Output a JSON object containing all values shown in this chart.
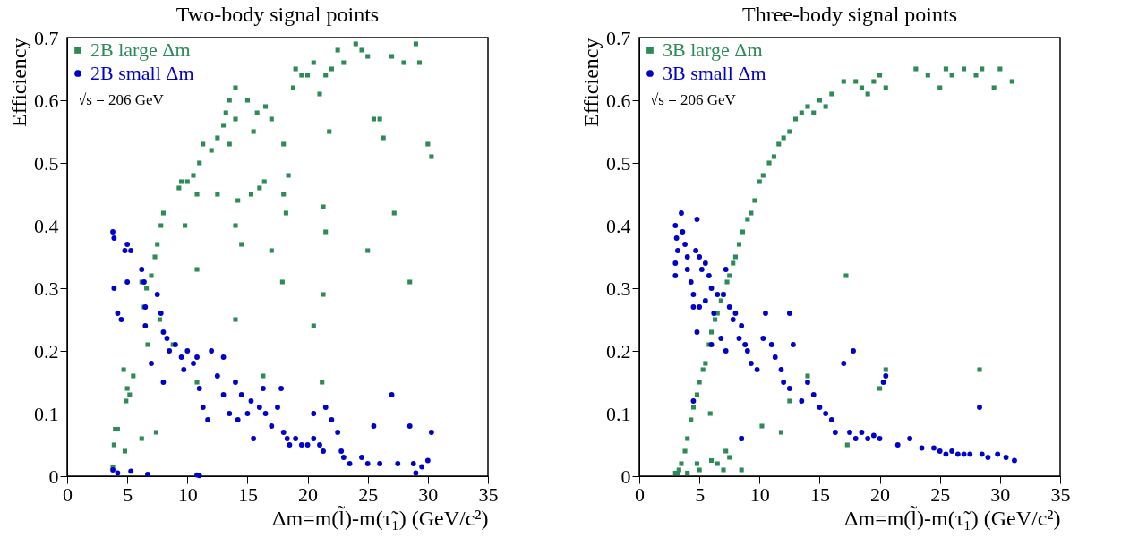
{
  "chart_data": [
    {
      "type": "scatter",
      "title": "Two-body signal points",
      "xlabel": "Δm=m(l̃)-m(τ̃₁) (GeV/c²)",
      "ylabel": "Efficiency",
      "xlim": [
        0,
        35
      ],
      "ylim": [
        0,
        0.7
      ],
      "xticks": [
        0,
        5,
        10,
        15,
        20,
        25,
        30,
        35
      ],
      "yticks": [
        0,
        0.1,
        0.2,
        0.3,
        0.4,
        0.5,
        0.6,
        0.7
      ],
      "grid": false,
      "legend": "top left",
      "annotations": [
        "√s = 206 GeV"
      ],
      "series": [
        {
          "name": "2B large Δm",
          "color": "#2e8b57",
          "marker": "square",
          "x": [
            3.8,
            3.9,
            4.0,
            4.2,
            4.7,
            5.0,
            4.9,
            5.2,
            5.5,
            4.8,
            6.2,
            6.2,
            6.4,
            6.6,
            6.7,
            7.0,
            7.3,
            7.5,
            7.8,
            8.0,
            7.7,
            7.4,
            8.8,
            9.3,
            9.5,
            10.0,
            9.8,
            10.5,
            10.8,
            11.0,
            11.3,
            10.8,
            10.8,
            12.0,
            12.5,
            13.0,
            13.2,
            13.5,
            14.0,
            14.0,
            13.5,
            14.2,
            14.0,
            14.0,
            15.0,
            15.5,
            15.8,
            16.0,
            16.5,
            17.0,
            17.0,
            18.0,
            18.0,
            18.2,
            17.9,
            18.4,
            18.8,
            19.0,
            19.5,
            20.0,
            20.5,
            21.0,
            21.5,
            21.8,
            21.5,
            21.3,
            21.2,
            21.3,
            20.5,
            22.0,
            22.5,
            23.0,
            24.0,
            24.5,
            25.0,
            25.0,
            25.5,
            26.0,
            26.3,
            27.0,
            27.2,
            28.0,
            28.5,
            29.0,
            29.3,
            30.0,
            30.3,
            16.3,
            16.4,
            12.5,
            14.5,
            15.3
          ],
          "values": [
            0.015,
            0.05,
            0.075,
            0.075,
            0.17,
            0.14,
            0.12,
            0.13,
            0.16,
            0.04,
            0.06,
            0.31,
            0.27,
            0.3,
            0.21,
            0.32,
            0.35,
            0.37,
            0.4,
            0.42,
            0.25,
            0.07,
            0.21,
            0.46,
            0.47,
            0.47,
            0.4,
            0.48,
            0.45,
            0.5,
            0.53,
            0.33,
            0.15,
            0.52,
            0.45,
            0.56,
            0.58,
            0.6,
            0.62,
            0.57,
            0.53,
            0.44,
            0.25,
            0.4,
            0.6,
            0.55,
            0.58,
            0.46,
            0.59,
            0.57,
            0.36,
            0.53,
            0.45,
            0.42,
            0.31,
            0.48,
            0.62,
            0.65,
            0.64,
            0.64,
            0.66,
            0.61,
            0.64,
            0.55,
            0.39,
            0.43,
            0.15,
            0.29,
            0.24,
            0.65,
            0.68,
            0.66,
            0.69,
            0.68,
            0.67,
            0.36,
            0.57,
            0.57,
            0.54,
            0.67,
            0.42,
            0.66,
            0.31,
            0.69,
            0.66,
            0.53,
            0.51,
            0.16,
            0.47,
            0.54,
            0.37,
            0.45
          ]
        },
        {
          "name": "2B small Δm",
          "color": "#0000cc",
          "marker": "circle",
          "x": [
            3.8,
            3.9,
            3.9,
            4.2,
            4.5,
            4.8,
            5.0,
            5.3,
            5.0,
            6.2,
            6.4,
            6.5,
            6.5,
            7.0,
            7.5,
            7.8,
            8.0,
            8.3,
            8.5,
            8.0,
            9.0,
            9.5,
            9.7,
            10.0,
            10.5,
            10.8,
            11.0,
            11.3,
            11.7,
            12.0,
            12.5,
            13.0,
            13.5,
            14.0,
            14.2,
            14.5,
            15.0,
            15.3,
            15.5,
            16.0,
            16.3,
            16.5,
            17.0,
            17.5,
            17.8,
            18.0,
            18.3,
            18.5,
            19.0,
            19.5,
            20.0,
            20.5,
            21.0,
            21.3,
            21.5,
            22.0,
            22.5,
            22.8,
            23.0,
            23.5,
            24.5,
            25.0,
            25.5,
            26.0,
            27.0,
            27.5,
            28.5,
            28.8,
            29.0,
            29.5,
            30.0,
            30.3,
            3.8,
            4.2,
            5.3,
            6.7,
            10.8,
            11.0,
            20.5,
            13.0
          ],
          "values": [
            0.39,
            0.38,
            0.3,
            0.26,
            0.25,
            0.36,
            0.37,
            0.36,
            0.31,
            0.33,
            0.31,
            0.27,
            0.24,
            0.18,
            0.29,
            0.26,
            0.23,
            0.22,
            0.2,
            0.15,
            0.21,
            0.19,
            0.17,
            0.2,
            0.18,
            0.19,
            0.14,
            0.11,
            0.09,
            0.2,
            0.16,
            0.13,
            0.1,
            0.15,
            0.09,
            0.13,
            0.1,
            0.12,
            0.06,
            0.11,
            0.14,
            0.1,
            0.08,
            0.11,
            0.14,
            0.07,
            0.06,
            0.05,
            0.06,
            0.05,
            0.05,
            0.06,
            0.05,
            0.04,
            0.11,
            0.09,
            0.07,
            0.04,
            0.03,
            0.02,
            0.03,
            0.02,
            0.08,
            0.02,
            0.13,
            0.02,
            0.08,
            0.02,
            0.005,
            0.015,
            0.025,
            0.07,
            0.01,
            0.005,
            0.008,
            0.003,
            0.002,
            0.001,
            0.1,
            0.19
          ]
        }
      ]
    },
    {
      "type": "scatter",
      "title": "Three-body signal points",
      "xlabel": "Δm=m(l̃)-m(τ̃₁) (GeV/c²)",
      "ylabel": "Efficiency",
      "xlim": [
        0,
        35
      ],
      "ylim": [
        0,
        0.7
      ],
      "xticks": [
        0,
        5,
        10,
        15,
        20,
        25,
        30,
        35
      ],
      "yticks": [
        0,
        0.1,
        0.2,
        0.3,
        0.4,
        0.5,
        0.6,
        0.7
      ],
      "grid": false,
      "legend": "top left",
      "annotations": [
        "√s = 206 GeV"
      ],
      "series": [
        {
          "name": "3B large Δm",
          "color": "#2e8b57",
          "marker": "square",
          "x": [
            3.0,
            3.3,
            3.5,
            3.8,
            4.0,
            4.3,
            4.5,
            4.8,
            5.0,
            5.3,
            5.5,
            5.8,
            6.0,
            6.3,
            6.5,
            6.8,
            7.0,
            7.3,
            7.5,
            7.8,
            8.0,
            8.3,
            8.6,
            9.0,
            9.3,
            9.6,
            10.0,
            10.3,
            10.8,
            11.2,
            11.6,
            12.0,
            12.5,
            13.0,
            13.5,
            14.0,
            14.5,
            15.0,
            15.5,
            16.0,
            17.0,
            18.0,
            18.5,
            19.0,
            19.5,
            20.0,
            20.5,
            23.0,
            24.0,
            25.0,
            25.5,
            26.0,
            27.0,
            28.0,
            28.5,
            29.5,
            30.0,
            31.0,
            4.0,
            4.8,
            5.0,
            6.0,
            6.5,
            7.0,
            7.2,
            7.5,
            8.5,
            8.5,
            10.2,
            11.8,
            12.5,
            14.0,
            17.2,
            17.3,
            20.0,
            20.5,
            28.3,
            5.9,
            3.2
          ],
          "values": [
            0.005,
            0.01,
            0.02,
            0.04,
            0.06,
            0.09,
            0.11,
            0.13,
            0.15,
            0.17,
            0.18,
            0.21,
            0.23,
            0.25,
            0.26,
            0.28,
            0.29,
            0.31,
            0.32,
            0.34,
            0.35,
            0.37,
            0.39,
            0.41,
            0.42,
            0.44,
            0.47,
            0.48,
            0.5,
            0.51,
            0.53,
            0.54,
            0.55,
            0.57,
            0.58,
            0.59,
            0.58,
            0.6,
            0.59,
            0.61,
            0.63,
            0.63,
            0.62,
            0.61,
            0.63,
            0.64,
            0.62,
            0.65,
            0.64,
            0.62,
            0.65,
            0.64,
            0.65,
            0.64,
            0.65,
            0.62,
            0.65,
            0.63,
            0.005,
            0.02,
            0.01,
            0.025,
            0.02,
            0.01,
            0.04,
            0.03,
            0.06,
            0.01,
            0.08,
            0.07,
            0.12,
            0.16,
            0.32,
            0.05,
            0.14,
            0.17,
            0.17,
            0.1,
            0.005
          ]
        },
        {
          "name": "3B small Δm",
          "color": "#0000cc",
          "marker": "circle",
          "x": [
            3.0,
            3.1,
            3.2,
            3.0,
            3.0,
            3.5,
            3.6,
            3.8,
            4.0,
            4.0,
            4.3,
            4.5,
            4.7,
            4.8,
            5.0,
            5.2,
            5.5,
            5.8,
            6.0,
            5.5,
            5.0,
            4.5,
            6.5,
            6.2,
            7.0,
            7.2,
            7.5,
            7.8,
            8.0,
            8.5,
            6.0,
            6.8,
            7.2,
            8.3,
            8.8,
            9.0,
            9.3,
            9.8,
            10.3,
            10.5,
            11.0,
            11.3,
            11.8,
            12.0,
            12.5,
            12.5,
            12.8,
            13.5,
            14.0,
            14.5,
            15.0,
            15.5,
            16.0,
            16.3,
            17.0,
            17.5,
            17.8,
            18.0,
            18.5,
            19.0,
            19.5,
            20.0,
            20.3,
            20.5,
            21.5,
            22.5,
            23.5,
            24.5,
            25.0,
            25.5,
            26.0,
            26.5,
            27.0,
            27.5,
            28.3,
            28.5,
            29.0,
            29.8,
            30.5,
            31.2,
            8.5,
            4.5,
            4.8
          ],
          "values": [
            0.4,
            0.38,
            0.36,
            0.34,
            0.32,
            0.42,
            0.39,
            0.37,
            0.35,
            0.33,
            0.31,
            0.29,
            0.36,
            0.41,
            0.35,
            0.33,
            0.34,
            0.32,
            0.3,
            0.28,
            0.27,
            0.27,
            0.29,
            0.26,
            0.29,
            0.33,
            0.27,
            0.25,
            0.26,
            0.24,
            0.21,
            0.22,
            0.2,
            0.22,
            0.21,
            0.2,
            0.18,
            0.17,
            0.22,
            0.26,
            0.21,
            0.19,
            0.17,
            0.15,
            0.26,
            0.14,
            0.21,
            0.12,
            0.15,
            0.13,
            0.11,
            0.1,
            0.09,
            0.07,
            0.18,
            0.07,
            0.2,
            0.06,
            0.07,
            0.06,
            0.065,
            0.06,
            0.15,
            0.16,
            0.05,
            0.06,
            0.045,
            0.045,
            0.04,
            0.035,
            0.04,
            0.035,
            0.035,
            0.035,
            0.11,
            0.035,
            0.03,
            0.035,
            0.03,
            0.025,
            0.06,
            0.12,
            0.23
          ]
        }
      ]
    }
  ]
}
